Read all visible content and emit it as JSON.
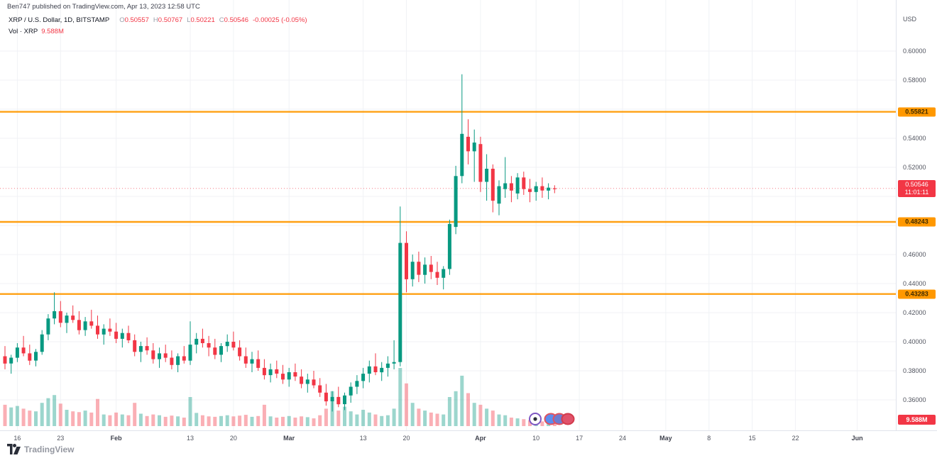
{
  "watermark": "Ben747 published on TradingView.com, Apr 13, 2023 12:58 UTC",
  "legend": {
    "symbol_title": "XRP / U.S. Dollar, 1D, BITSTAMP",
    "ohlc": {
      "o_label": "O",
      "o": "0.50557",
      "h_label": "H",
      "h": "0.50767",
      "l_label": "L",
      "l": "0.50221",
      "c_label": "C",
      "c": "0.50546",
      "change": "-0.00025 (-0.05%)"
    },
    "volume_row": {
      "label": "Vol · XRP",
      "value": "9.588M"
    }
  },
  "y_axis": {
    "currency": "USD",
    "ticks": [
      {
        "label": "0.60000",
        "price": 0.6
      },
      {
        "label": "0.58000",
        "price": 0.58
      },
      {
        "label": "0.54000",
        "price": 0.54
      },
      {
        "label": "0.52000",
        "price": 0.52
      },
      {
        "label": "0.46000",
        "price": 0.46
      },
      {
        "label": "0.44000",
        "price": 0.44
      },
      {
        "label": "0.42000",
        "price": 0.42
      },
      {
        "label": "0.40000",
        "price": 0.4
      },
      {
        "label": "0.38000",
        "price": 0.38
      },
      {
        "label": "0.36000",
        "price": 0.36
      }
    ]
  },
  "x_axis": {
    "ticks": [
      {
        "label": "16",
        "day": 2,
        "major": false
      },
      {
        "label": "23",
        "day": 9,
        "major": false
      },
      {
        "label": "Feb",
        "day": 18,
        "major": true
      },
      {
        "label": "13",
        "day": 30,
        "major": false
      },
      {
        "label": "20",
        "day": 37,
        "major": false
      },
      {
        "label": "Mar",
        "day": 46,
        "major": true
      },
      {
        "label": "13",
        "day": 58,
        "major": false
      },
      {
        "label": "20",
        "day": 65,
        "major": false
      },
      {
        "label": "Apr",
        "day": 77,
        "major": true
      },
      {
        "label": "10",
        "day": 86,
        "major": false
      },
      {
        "label": "17",
        "day": 93,
        "major": false
      },
      {
        "label": "24",
        "day": 100,
        "major": false
      },
      {
        "label": "May",
        "day": 107,
        "major": true
      },
      {
        "label": "8",
        "day": 114,
        "major": false
      },
      {
        "label": "15",
        "day": 121,
        "major": false
      },
      {
        "label": "22",
        "day": 128,
        "major": false
      },
      {
        "label": "Jun",
        "day": 138,
        "major": true
      }
    ]
  },
  "horizontal_lines": [
    {
      "label": "0.55821",
      "price": 0.55821
    },
    {
      "label": "0.48243",
      "price": 0.48243
    },
    {
      "label": "0.43283",
      "price": 0.43283
    }
  ],
  "price_labels": {
    "last": {
      "price_text": "0.50546",
      "countdown": "11:01:11",
      "price": 0.50546
    },
    "volume": {
      "text": "9.588M"
    }
  },
  "footer": {
    "logo_text": "TradingView"
  },
  "colors": {
    "up": "#089981",
    "down": "#f23645",
    "vol_up": "rgba(8,153,129,0.4)",
    "vol_down": "rgba(242,54,69,0.4)",
    "level_orange": "#ff9800",
    "last_price": "#f23645",
    "grid": "#f0f2f5"
  },
  "chart_data": {
    "type": "candlestick+volume",
    "title": "XRP / U.S. Dollar",
    "symbol": "XRP/USD",
    "exchange": "BITSTAMP",
    "interval": "1D",
    "x_start_date": "2023-01-14",
    "x_end_date": "2023-04-13",
    "y_range": [
      0.345,
      0.615
    ],
    "y_step": 0.02,
    "legend_position": "top-left",
    "grid": true,
    "volume_unit": "millions",
    "levels": [
      0.55821,
      0.48243,
      0.43283
    ],
    "last_price": 0.50546,
    "last_volume_m": 9.588,
    "candles_format": [
      "open",
      "high",
      "low",
      "close",
      "volume_m"
    ],
    "candles": [
      [
        0.39,
        0.397,
        0.381,
        0.385,
        55
      ],
      [
        0.385,
        0.391,
        0.378,
        0.389,
        48
      ],
      [
        0.389,
        0.399,
        0.386,
        0.396,
        52
      ],
      [
        0.396,
        0.404,
        0.39,
        0.392,
        45
      ],
      [
        0.392,
        0.398,
        0.384,
        0.387,
        40
      ],
      [
        0.387,
        0.395,
        0.383,
        0.393,
        38
      ],
      [
        0.393,
        0.408,
        0.391,
        0.405,
        60
      ],
      [
        0.405,
        0.419,
        0.401,
        0.416,
        72
      ],
      [
        0.416,
        0.434,
        0.412,
        0.421,
        80
      ],
      [
        0.421,
        0.428,
        0.41,
        0.413,
        58
      ],
      [
        0.413,
        0.42,
        0.406,
        0.418,
        42
      ],
      [
        0.418,
        0.425,
        0.413,
        0.415,
        38
      ],
      [
        0.415,
        0.421,
        0.405,
        0.408,
        36
      ],
      [
        0.408,
        0.417,
        0.404,
        0.414,
        40
      ],
      [
        0.414,
        0.422,
        0.409,
        0.411,
        35
      ],
      [
        0.411,
        0.418,
        0.402,
        0.405,
        70
      ],
      [
        0.405,
        0.412,
        0.398,
        0.409,
        30
      ],
      [
        0.409,
        0.416,
        0.404,
        0.407,
        28
      ],
      [
        0.407,
        0.413,
        0.399,
        0.402,
        35
      ],
      [
        0.402,
        0.409,
        0.396,
        0.406,
        30
      ],
      [
        0.406,
        0.411,
        0.399,
        0.401,
        28
      ],
      [
        0.401,
        0.405,
        0.39,
        0.393,
        60
      ],
      [
        0.393,
        0.4,
        0.386,
        0.397,
        32
      ],
      [
        0.397,
        0.403,
        0.391,
        0.394,
        26
      ],
      [
        0.394,
        0.399,
        0.385,
        0.388,
        30
      ],
      [
        0.388,
        0.396,
        0.382,
        0.392,
        28
      ],
      [
        0.392,
        0.398,
        0.386,
        0.389,
        24
      ],
      [
        0.389,
        0.394,
        0.381,
        0.384,
        27
      ],
      [
        0.384,
        0.392,
        0.379,
        0.39,
        25
      ],
      [
        0.39,
        0.397,
        0.385,
        0.387,
        22
      ],
      [
        0.387,
        0.414,
        0.384,
        0.398,
        75
      ],
      [
        0.398,
        0.406,
        0.392,
        0.402,
        34
      ],
      [
        0.402,
        0.409,
        0.396,
        0.399,
        28
      ],
      [
        0.399,
        0.404,
        0.39,
        0.396,
        25
      ],
      [
        0.396,
        0.402,
        0.388,
        0.391,
        24
      ],
      [
        0.391,
        0.399,
        0.386,
        0.397,
        26
      ],
      [
        0.397,
        0.405,
        0.393,
        0.4,
        28
      ],
      [
        0.4,
        0.407,
        0.394,
        0.396,
        25
      ],
      [
        0.396,
        0.401,
        0.387,
        0.39,
        27
      ],
      [
        0.39,
        0.396,
        0.382,
        0.385,
        29
      ],
      [
        0.385,
        0.393,
        0.379,
        0.388,
        24
      ],
      [
        0.388,
        0.394,
        0.38,
        0.382,
        26
      ],
      [
        0.382,
        0.388,
        0.374,
        0.377,
        55
      ],
      [
        0.377,
        0.385,
        0.372,
        0.381,
        25
      ],
      [
        0.381,
        0.387,
        0.375,
        0.378,
        22
      ],
      [
        0.378,
        0.384,
        0.371,
        0.374,
        24
      ],
      [
        0.374,
        0.382,
        0.369,
        0.379,
        26
      ],
      [
        0.379,
        0.385,
        0.373,
        0.376,
        22
      ],
      [
        0.376,
        0.381,
        0.368,
        0.371,
        25
      ],
      [
        0.371,
        0.378,
        0.365,
        0.374,
        23
      ],
      [
        0.374,
        0.38,
        0.368,
        0.37,
        20
      ],
      [
        0.37,
        0.375,
        0.362,
        0.365,
        28
      ],
      [
        0.365,
        0.371,
        0.356,
        0.359,
        45
      ],
      [
        0.359,
        0.366,
        0.352,
        0.362,
        90
      ],
      [
        0.362,
        0.369,
        0.355,
        0.357,
        40
      ],
      [
        0.357,
        0.365,
        0.353,
        0.363,
        50
      ],
      [
        0.363,
        0.372,
        0.358,
        0.369,
        38
      ],
      [
        0.369,
        0.377,
        0.364,
        0.373,
        30
      ],
      [
        0.373,
        0.382,
        0.368,
        0.378,
        42
      ],
      [
        0.378,
        0.387,
        0.372,
        0.383,
        35
      ],
      [
        0.383,
        0.392,
        0.377,
        0.379,
        30
      ],
      [
        0.379,
        0.386,
        0.373,
        0.382,
        26
      ],
      [
        0.382,
        0.39,
        0.376,
        0.385,
        28
      ],
      [
        0.385,
        0.401,
        0.381,
        0.386,
        45
      ],
      [
        0.386,
        0.493,
        0.383,
        0.468,
        150
      ],
      [
        0.468,
        0.476,
        0.434,
        0.443,
        110
      ],
      [
        0.443,
        0.46,
        0.438,
        0.455,
        60
      ],
      [
        0.455,
        0.462,
        0.441,
        0.446,
        45
      ],
      [
        0.446,
        0.458,
        0.44,
        0.453,
        40
      ],
      [
        0.453,
        0.459,
        0.443,
        0.448,
        35
      ],
      [
        0.448,
        0.455,
        0.439,
        0.444,
        32
      ],
      [
        0.444,
        0.452,
        0.436,
        0.45,
        30
      ],
      [
        0.45,
        0.484,
        0.446,
        0.481,
        75
      ],
      [
        0.479,
        0.521,
        0.474,
        0.514,
        90
      ],
      [
        0.514,
        0.584,
        0.509,
        0.543,
        130
      ],
      [
        0.541,
        0.553,
        0.522,
        0.531,
        85
      ],
      [
        0.531,
        0.546,
        0.51,
        0.537,
        60
      ],
      [
        0.536,
        0.541,
        0.503,
        0.51,
        55
      ],
      [
        0.51,
        0.529,
        0.497,
        0.519,
        45
      ],
      [
        0.519,
        0.522,
        0.489,
        0.497,
        40
      ],
      [
        0.495,
        0.511,
        0.487,
        0.507,
        30
      ],
      [
        0.505,
        0.527,
        0.499,
        0.509,
        28
      ],
      [
        0.509,
        0.514,
        0.496,
        0.504,
        22
      ],
      [
        0.502,
        0.516,
        0.498,
        0.513,
        20
      ],
      [
        0.513,
        0.517,
        0.501,
        0.505,
        18
      ],
      [
        0.505,
        0.512,
        0.496,
        0.503,
        15
      ],
      [
        0.503,
        0.51,
        0.497,
        0.507,
        14
      ],
      [
        0.507,
        0.513,
        0.499,
        0.504,
        12
      ],
      [
        0.504,
        0.509,
        0.498,
        0.506,
        10
      ],
      [
        0.50557,
        0.50767,
        0.50221,
        0.50546,
        9.588
      ]
    ]
  }
}
